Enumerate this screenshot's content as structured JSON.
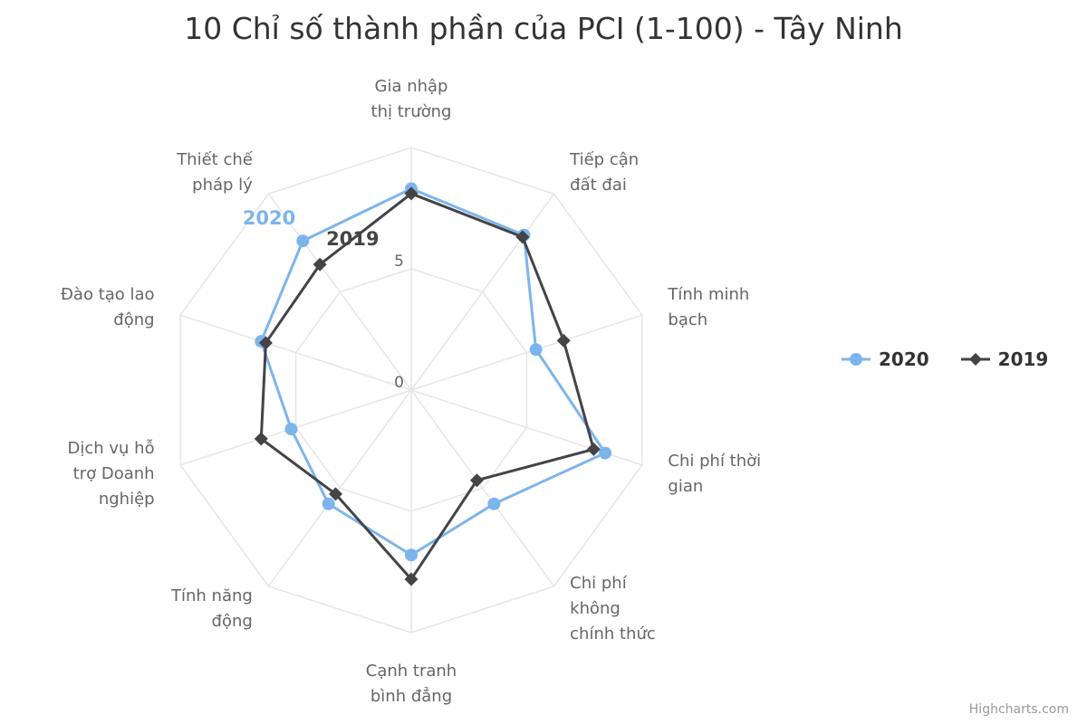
{
  "chart_data": {
    "type": "line",
    "polar": true,
    "title": "10 Chỉ số thành phần của PCI (1-100) - Tây Ninh",
    "categories": [
      "Gia nhập\nthị trường",
      "Tiếp cận\nđất đai",
      "Tính minh\nbạch",
      "Chi phí thời\ngian",
      "Chi phí\nkhông\nchính thức",
      "Cạnh tranh\nbình đẳng",
      "Tính năng\nđộng",
      "Dịch vụ hỗ\ntrợ Doanh\nnghiệp",
      "Đào tạo lao\nđộng",
      "Thiết chế\npháp lý"
    ],
    "yaxis": {
      "ticks": [
        "0",
        "5"
      ],
      "min": 0,
      "max": 10
    },
    "grid": true,
    "legend_position": "right",
    "series": [
      {
        "name": "2020",
        "color": "#7cb5ec",
        "marker": "circle",
        "values": [
          8.3,
          7.9,
          5.4,
          8.4,
          5.8,
          6.8,
          5.8,
          5.2,
          6.5,
          7.6
        ]
      },
      {
        "name": "2019",
        "color": "#434348",
        "marker": "diamond",
        "values": [
          8.1,
          7.8,
          6.6,
          7.9,
          4.6,
          7.8,
          5.3,
          6.5,
          6.3,
          6.4
        ]
      }
    ]
  },
  "legend": {
    "items": [
      "2020",
      "2019"
    ]
  },
  "credits": "Highcharts.com"
}
